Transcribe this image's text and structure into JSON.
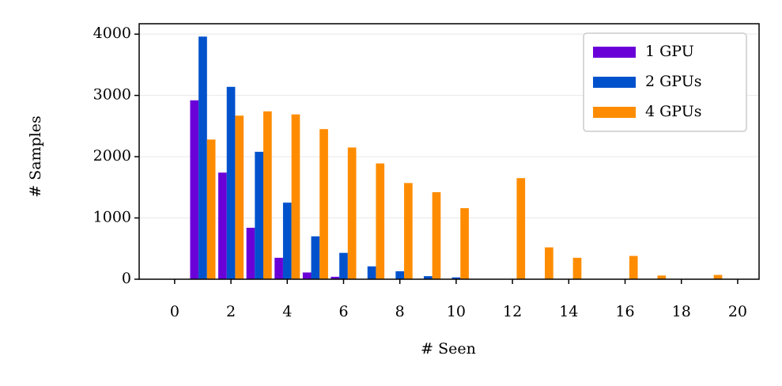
{
  "chart_data": {
    "type": "bar",
    "xlabel": "# Seen",
    "ylabel": "# Samples",
    "x": [
      1,
      2,
      3,
      4,
      5,
      6,
      7,
      8,
      9,
      10,
      11,
      12,
      13,
      14,
      15,
      16,
      17,
      18,
      19
    ],
    "series": [
      {
        "name": "1 GPU",
        "color": "#6a00d8",
        "values": [
          2920,
          1740,
          840,
          350,
          110,
          40,
          0,
          0,
          0,
          0,
          0,
          0,
          0,
          0,
          0,
          0,
          0,
          0,
          0
        ]
      },
      {
        "name": "2 GPUs",
        "color": "#0052cc",
        "values": [
          3960,
          3140,
          2080,
          1250,
          700,
          430,
          210,
          130,
          50,
          30,
          0,
          0,
          0,
          0,
          0,
          0,
          0,
          0,
          0
        ]
      },
      {
        "name": "4 GPUs",
        "color": "#ff8c00",
        "values": [
          2280,
          2670,
          2740,
          2690,
          2450,
          2150,
          1890,
          1570,
          1420,
          1160,
          0,
          1650,
          520,
          350,
          0,
          380,
          60,
          0,
          70
        ]
      }
    ],
    "xlim": [
      -1.26,
      20.76
    ],
    "xticks": [
      0,
      2,
      4,
      6,
      8,
      10,
      12,
      14,
      16,
      18,
      20
    ],
    "ylim": [
      0,
      4170
    ],
    "yticks": [
      0,
      1000,
      2000,
      3000,
      4000
    ],
    "grid": true,
    "legend": "upper right"
  }
}
